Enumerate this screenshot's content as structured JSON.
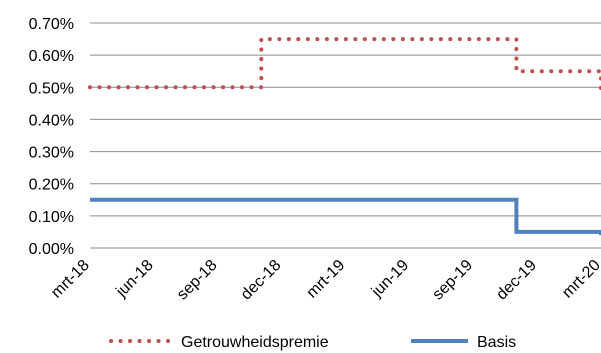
{
  "chart_data": {
    "type": "line",
    "title": "",
    "xlabel": "",
    "ylabel": "",
    "ylim": [
      0,
      0.7
    ],
    "y_ticks": [
      "0.00%",
      "0.10%",
      "0.20%",
      "0.30%",
      "0.40%",
      "0.50%",
      "0.60%",
      "0.70%"
    ],
    "x_ticks": [
      "mrt-18",
      "jun-18",
      "sep-18",
      "dec-18",
      "mrt-19",
      "jun-19",
      "sep-19",
      "dec-19",
      "mrt-20"
    ],
    "x_range": [
      "2018-03-01",
      "2020-03-01"
    ],
    "grid": "horizontal",
    "legend_position": "bottom",
    "step": true,
    "series": [
      {
        "name": "Getrouwheidspremie",
        "style": "dotted",
        "color": "#c0504d",
        "points": [
          {
            "x": "2018-03-01",
            "y": 0.5
          },
          {
            "x": "2018-11-01",
            "y": 0.5
          },
          {
            "x": "2018-11-01",
            "y": 0.65
          },
          {
            "x": "2019-11-01",
            "y": 0.65
          },
          {
            "x": "2019-11-01",
            "y": 0.55
          },
          {
            "x": "2020-03-01",
            "y": 0.55
          },
          {
            "x": "2020-03-01",
            "y": 0.47
          }
        ]
      },
      {
        "name": "Basis",
        "style": "solid",
        "color": "#4f81bd",
        "points": [
          {
            "x": "2018-03-01",
            "y": 0.15
          },
          {
            "x": "2019-11-01",
            "y": 0.15
          },
          {
            "x": "2019-11-01",
            "y": 0.05
          },
          {
            "x": "2020-03-01",
            "y": 0.05
          },
          {
            "x": "2020-03-01",
            "y": 0.04
          }
        ]
      }
    ]
  }
}
